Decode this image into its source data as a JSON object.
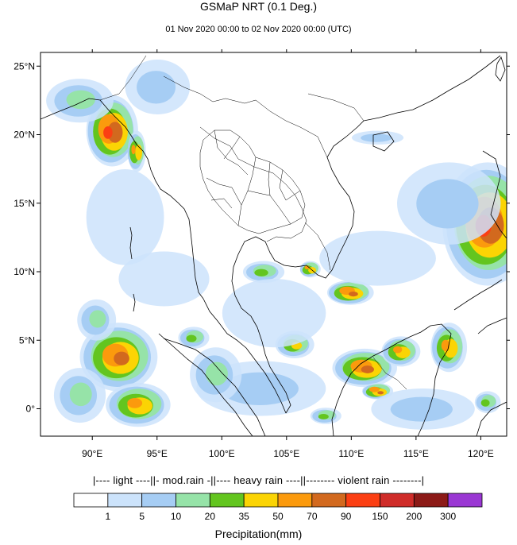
{
  "title": "GSMaP NRT (0.1 Deg.)",
  "subtitle": "01 Nov 2020 00:00 to 02 Nov 2020 00:00 (UTC)",
  "map": {
    "projection": "lat-lon",
    "lon_range": [
      86,
      122
    ],
    "lat_range": [
      -2,
      26
    ],
    "lon_ticks": [
      {
        "value": 90,
        "label": "90°E"
      },
      {
        "value": 95,
        "label": "95°E"
      },
      {
        "value": 100,
        "label": "100°E"
      },
      {
        "value": 105,
        "label": "105°E"
      },
      {
        "value": 110,
        "label": "110°E"
      },
      {
        "value": 115,
        "label": "115°E"
      },
      {
        "value": 120,
        "label": "120°E"
      }
    ],
    "lat_ticks": [
      {
        "value": 25,
        "label": "25°N"
      },
      {
        "value": 20,
        "label": "20°N"
      },
      {
        "value": 15,
        "label": "15°N"
      },
      {
        "value": 10,
        "label": "10°N"
      },
      {
        "value": 5,
        "label": "5°N"
      },
      {
        "value": 0,
        "label": "0°"
      }
    ],
    "rain_cells": [
      {
        "lon": 91.5,
        "lat": 20.3,
        "rx": 2.0,
        "ry": 2.6,
        "peak": 8
      },
      {
        "lon": 93.4,
        "lat": 18.8,
        "rx": 0.7,
        "ry": 1.5,
        "peak": 6
      },
      {
        "lon": 89.0,
        "lat": 22.5,
        "rx": 2.6,
        "ry": 1.6,
        "peak": 3
      },
      {
        "lon": 92.5,
        "lat": 14.0,
        "rx": 3.0,
        "ry": 3.5,
        "peak": 1
      },
      {
        "lon": 120.5,
        "lat": 13.5,
        "rx": 3.5,
        "ry": 4.5,
        "peak": 8
      },
      {
        "lon": 117.5,
        "lat": 15.0,
        "rx": 4.0,
        "ry": 3.0,
        "peak": 2
      },
      {
        "lon": 109.9,
        "lat": 8.5,
        "rx": 1.8,
        "ry": 0.9,
        "peak": 7
      },
      {
        "lon": 111.0,
        "lat": 3.0,
        "rx": 2.5,
        "ry": 1.4,
        "peak": 7
      },
      {
        "lon": 113.8,
        "lat": 4.2,
        "rx": 1.5,
        "ry": 1.1,
        "peak": 6
      },
      {
        "lon": 117.5,
        "lat": 4.5,
        "rx": 1.4,
        "ry": 1.8,
        "peak": 6
      },
      {
        "lon": 112.0,
        "lat": 1.3,
        "rx": 1.2,
        "ry": 0.6,
        "peak": 7
      },
      {
        "lon": 92.0,
        "lat": 3.8,
        "rx": 3.0,
        "ry": 2.5,
        "peak": 7
      },
      {
        "lon": 93.5,
        "lat": 0.3,
        "rx": 2.5,
        "ry": 1.6,
        "peak": 6
      },
      {
        "lon": 89.0,
        "lat": 1.0,
        "rx": 2.0,
        "ry": 2.0,
        "peak": 3
      },
      {
        "lon": 90.3,
        "lat": 6.5,
        "rx": 1.5,
        "ry": 1.5,
        "peak": 3
      },
      {
        "lon": 105.6,
        "lat": 4.7,
        "rx": 1.5,
        "ry": 1.0,
        "peak": 5
      },
      {
        "lon": 97.8,
        "lat": 5.2,
        "rx": 1.2,
        "ry": 0.8,
        "peak": 4
      },
      {
        "lon": 103.2,
        "lat": 10.0,
        "rx": 1.6,
        "ry": 0.8,
        "peak": 4
      },
      {
        "lon": 106.8,
        "lat": 10.2,
        "rx": 0.8,
        "ry": 0.6,
        "peak": 6
      },
      {
        "lon": 120.5,
        "lat": 0.5,
        "rx": 1.0,
        "ry": 0.8,
        "peak": 4
      },
      {
        "lon": 108.0,
        "lat": -0.5,
        "rx": 1.2,
        "ry": 0.6,
        "peak": 4
      },
      {
        "lon": 104.0,
        "lat": 7.0,
        "rx": 4.0,
        "ry": 2.5,
        "peak": 1
      },
      {
        "lon": 112.0,
        "lat": 11.0,
        "rx": 4.5,
        "ry": 2.0,
        "peak": 1
      },
      {
        "lon": 103.0,
        "lat": 1.5,
        "rx": 5.0,
        "ry": 2.0,
        "peak": 2
      },
      {
        "lon": 115.5,
        "lat": 0.0,
        "rx": 4.0,
        "ry": 1.5,
        "peak": 2
      },
      {
        "lon": 99.5,
        "lat": 2.5,
        "rx": 2.0,
        "ry": 2.0,
        "peak": 3
      },
      {
        "lon": 95.5,
        "lat": 9.5,
        "rx": 3.5,
        "ry": 2.0,
        "peak": 1
      },
      {
        "lon": 112.0,
        "lat": 19.8,
        "rx": 2.0,
        "ry": 0.5,
        "peak": 2
      },
      {
        "lon": 95.0,
        "lat": 23.5,
        "rx": 2.5,
        "ry": 2.0,
        "peak": 2
      }
    ]
  },
  "colorbar": {
    "category_header": "|---- light ----||- mod.rain -||---- heavy rain ----||-------- violent rain --------|",
    "colors": [
      "#ffffff",
      "#cce3fb",
      "#a6cdf4",
      "#96e3a8",
      "#63c51f",
      "#fbd404",
      "#fb9a0d",
      "#d2691e",
      "#fb3f13",
      "#cf2c29",
      "#8c1a17",
      "#9a37d3"
    ],
    "tick_labels": [
      "1",
      "5",
      "10",
      "20",
      "35",
      "50",
      "70",
      "90",
      "150",
      "200",
      "300"
    ],
    "title": "Precipitation(mm)"
  }
}
